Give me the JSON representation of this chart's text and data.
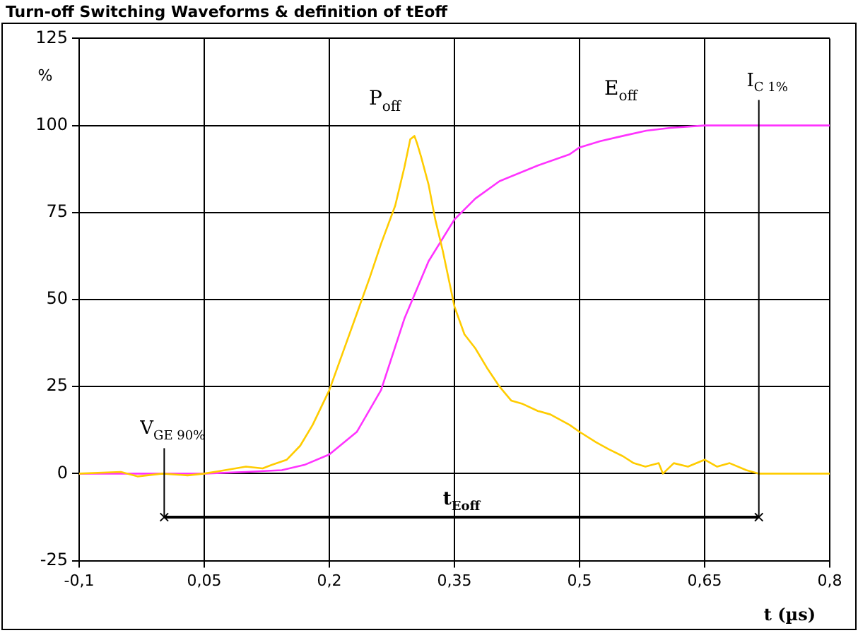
{
  "chart_data": {
    "type": "line",
    "title": "Turn-off Switching Waveforms & definition of tEoff",
    "xlabel": "t (µs)",
    "ylabel": "%",
    "xlim": [
      -0.1,
      0.8
    ],
    "xticks": [
      {
        "value": -0.1,
        "label": "-0,1"
      },
      {
        "value": 0.05,
        "label": "0,05"
      },
      {
        "value": 0.2,
        "label": "0,2"
      },
      {
        "value": 0.35,
        "label": "0,35"
      },
      {
        "value": 0.5,
        "label": "0,5"
      },
      {
        "value": 0.65,
        "label": "0,65"
      },
      {
        "value": 0.8,
        "label": "0,8"
      }
    ],
    "ylim": [
      -25,
      125
    ],
    "yticks": [
      -25,
      0,
      25,
      50,
      75,
      100,
      125
    ],
    "grid": true,
    "marker": "none",
    "line_style": "solid",
    "series": [
      {
        "name": "P$_{off}$",
        "color": "#ffcc00",
        "x": [
          -0.1,
          -0.05,
          -0.03,
          0,
          0.03,
          0.05,
          0.07,
          0.1,
          0.12,
          0.131,
          0.149,
          0.165,
          0.18,
          0.2,
          0.215,
          0.233,
          0.248,
          0.262,
          0.279,
          0.29,
          0.297,
          0.302,
          0.305,
          0.31,
          0.319,
          0.327,
          0.336,
          0.35,
          0.362,
          0.375,
          0.39,
          0.404,
          0.418,
          0.432,
          0.45,
          0.465,
          0.488,
          0.5,
          0.52,
          0.535,
          0.552,
          0.565,
          0.579,
          0.595,
          0.6,
          0.613,
          0.63,
          0.65,
          0.665,
          0.68,
          0.7,
          0.715,
          0.8
        ],
        "values": [
          0,
          0.5,
          -0.8,
          0,
          -0.5,
          0,
          0.8,
          2,
          1.5,
          2.5,
          4,
          8,
          14,
          24,
          34,
          46,
          56,
          66,
          77,
          88,
          96,
          97,
          95,
          91,
          83,
          73,
          64,
          48,
          40,
          36,
          30,
          25,
          21,
          20,
          18,
          17,
          14,
          12,
          9,
          7,
          5,
          3,
          2,
          3,
          0,
          3,
          2,
          4,
          2,
          3,
          1,
          0,
          0
        ]
      },
      {
        "name": "E$_{off}$",
        "color": "#ff33ff",
        "x": [
          -0.1,
          0.05,
          0.1,
          0.143,
          0.17,
          0.2,
          0.233,
          0.262,
          0.29,
          0.319,
          0.35,
          0.375,
          0.404,
          0.45,
          0.488,
          0.5,
          0.525,
          0.552,
          0.58,
          0.609,
          0.65,
          0.8
        ],
        "values": [
          0,
          0,
          0.5,
          1,
          2.5,
          5.5,
          12,
          24,
          44.5,
          61,
          73,
          79,
          84,
          88.5,
          91.7,
          93.7,
          95.5,
          97,
          98.5,
          99.3,
          100,
          100
        ]
      },
      {
        "name": "t$_{Eoff}$",
        "color": "#000000",
        "marker": "cross",
        "x": [
          0.002,
          0.715
        ],
        "values": [
          -12.5,
          -12.5
        ]
      }
    ],
    "ref_lines": [
      {
        "axis": "x",
        "value": 0.002,
        "label": "V$_{GE 90%}$",
        "color": "#000000"
      },
      {
        "axis": "x",
        "value": 0.715,
        "label": "I$_{C 1%}$",
        "color": "#000000"
      }
    ],
    "legend": false
  }
}
